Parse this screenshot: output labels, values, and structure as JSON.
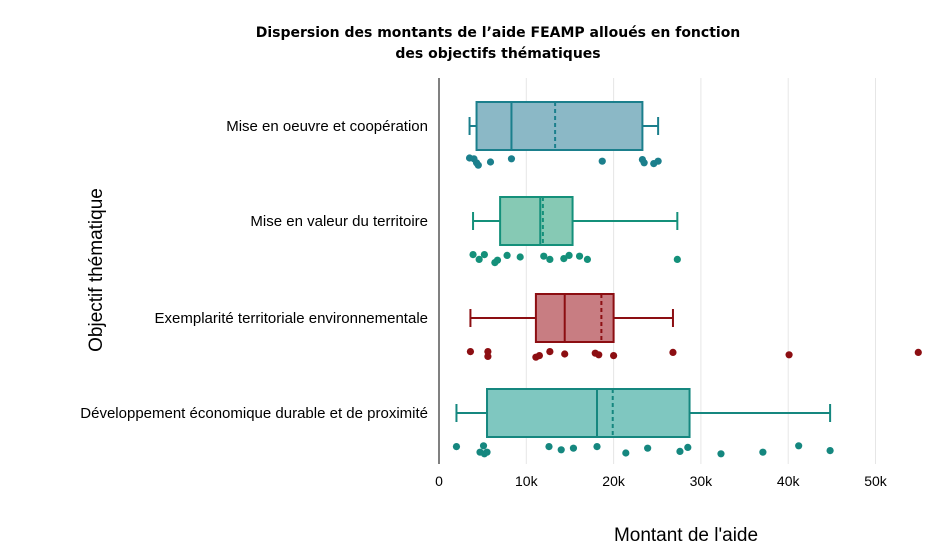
{
  "chart_data": {
    "type": "boxplot",
    "title_lines": [
      "Dispersion des montants de l’aide FEAMP alloués en fonction",
      "des objectifs thématiques"
    ],
    "xlabel": "Montant de l'aide",
    "ylabel": "Objectif thématique",
    "xlim": [
      0,
      55000
    ],
    "x_ticks": [
      0,
      10000,
      20000,
      30000,
      40000,
      50000
    ],
    "x_tick_labels": [
      "0",
      "10k",
      "20k",
      "30k",
      "40k",
      "50k"
    ],
    "grid": "vertical",
    "series": [
      {
        "category": "Mise en oeuvre et coopération",
        "color": "#1b7f8c",
        "fill": "#8bb8c6",
        "whisker_low": 3500,
        "q1": 4300,
        "median": 8300,
        "mean": 13300,
        "q3": 23300,
        "whisker_high": 25100,
        "points": [
          {
            "x": 3500,
            "j": -0.1
          },
          {
            "x": 4000,
            "j": -0.08
          },
          {
            "x": 4300,
            "j": 0.02
          },
          {
            "x": 4500,
            "j": 0.08
          },
          {
            "x": 5900,
            "j": 0.0
          },
          {
            "x": 8300,
            "j": -0.08
          },
          {
            "x": 18700,
            "j": -0.02
          },
          {
            "x": 23300,
            "j": -0.06
          },
          {
            "x": 23500,
            "j": 0.02
          },
          {
            "x": 24600,
            "j": 0.04
          },
          {
            "x": 25100,
            "j": -0.02
          }
        ]
      },
      {
        "category": "Mise en valeur du territoire",
        "color": "#14907a",
        "fill": "#86c9b4",
        "whisker_low": 3900,
        "q1": 7000,
        "median": 11600,
        "mean": 11900,
        "q3": 15300,
        "whisker_high": 27300,
        "points": [
          {
            "x": 3900,
            "j": -0.06
          },
          {
            "x": 4600,
            "j": 0.06
          },
          {
            "x": 5200,
            "j": -0.06
          },
          {
            "x": 6400,
            "j": 0.14
          },
          {
            "x": 6700,
            "j": 0.08
          },
          {
            "x": 7800,
            "j": -0.04
          },
          {
            "x": 9300,
            "j": 0.0
          },
          {
            "x": 12000,
            "j": -0.02
          },
          {
            "x": 12700,
            "j": 0.06
          },
          {
            "x": 14300,
            "j": 0.04
          },
          {
            "x": 14900,
            "j": -0.04
          },
          {
            "x": 16100,
            "j": -0.02
          },
          {
            "x": 17000,
            "j": 0.06
          },
          {
            "x": 27300,
            "j": 0.06
          }
        ]
      },
      {
        "category": "Exemplarité territoriale environnementale",
        "color": "#8c0e12",
        "fill": "#c87d82",
        "whisker_low": 3600,
        "q1": 11100,
        "median": 14400,
        "mean": 18600,
        "q3": 20000,
        "whisker_high": 26800,
        "points": [
          {
            "x": 3600,
            "j": -0.06
          },
          {
            "x": 5600,
            "j": -0.06
          },
          {
            "x": 5600,
            "j": 0.06
          },
          {
            "x": 11100,
            "j": 0.08
          },
          {
            "x": 11500,
            "j": 0.04
          },
          {
            "x": 12700,
            "j": -0.06
          },
          {
            "x": 14400,
            "j": 0.0
          },
          {
            "x": 17900,
            "j": -0.02
          },
          {
            "x": 18300,
            "j": 0.02
          },
          {
            "x": 20000,
            "j": 0.04
          },
          {
            "x": 26800,
            "j": -0.04
          },
          {
            "x": 40100,
            "j": 0.02
          },
          {
            "x": 54900,
            "j": -0.04
          }
        ]
      },
      {
        "category": "Développement économique durable et de proximité",
        "color": "#15877f",
        "fill": "#7fc7c0",
        "whisker_low": 2000,
        "q1": 5500,
        "median": 18100,
        "mean": 19900,
        "q3": 28700,
        "whisker_high": 44800,
        "points": [
          {
            "x": 2000,
            "j": -0.06
          },
          {
            "x": 4700,
            "j": 0.08
          },
          {
            "x": 5100,
            "j": -0.08
          },
          {
            "x": 5200,
            "j": 0.12
          },
          {
            "x": 5500,
            "j": 0.08
          },
          {
            "x": 12600,
            "j": -0.06
          },
          {
            "x": 14000,
            "j": 0.02
          },
          {
            "x": 15400,
            "j": -0.02
          },
          {
            "x": 18100,
            "j": -0.06
          },
          {
            "x": 21400,
            "j": 0.1
          },
          {
            "x": 23900,
            "j": -0.02
          },
          {
            "x": 27600,
            "j": 0.06
          },
          {
            "x": 28500,
            "j": -0.04
          },
          {
            "x": 32300,
            "j": 0.12
          },
          {
            "x": 37100,
            "j": 0.08
          },
          {
            "x": 41200,
            "j": -0.08
          },
          {
            "x": 44800,
            "j": 0.04
          }
        ]
      }
    ]
  }
}
